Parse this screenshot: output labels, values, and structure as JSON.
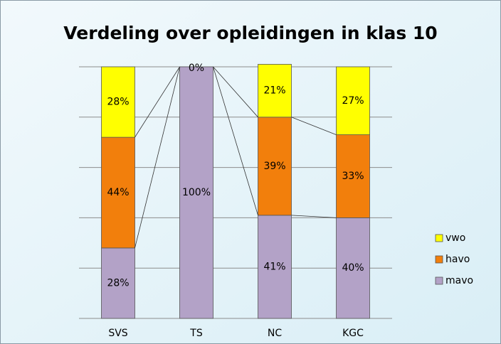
{
  "chart_data": {
    "type": "stacked_bar",
    "title": "Verdeling over opleidingen in klas 10",
    "categories": [
      "SVS",
      "TS",
      "NC",
      "KGC"
    ],
    "series": [
      {
        "name": "mavo",
        "color": "#b3a2c7",
        "values": [
          28,
          100,
          41,
          40
        ],
        "value_labels": [
          "28%",
          "100%",
          "41%",
          "40%"
        ]
      },
      {
        "name": "havo",
        "color": "#f27f0c",
        "values": [
          44,
          0,
          39,
          33
        ],
        "value_labels": [
          "44%",
          null,
          "39%",
          "33%"
        ]
      },
      {
        "name": "vwo",
        "color": "#ffff00",
        "values": [
          28,
          0,
          21,
          27
        ],
        "value_labels": [
          "28%",
          "0%",
          "21%",
          "27%"
        ]
      }
    ],
    "ylim": [
      0,
      100
    ],
    "yticks": [
      0,
      20,
      40,
      60,
      80,
      100
    ],
    "grid": true,
    "legend": "right"
  }
}
